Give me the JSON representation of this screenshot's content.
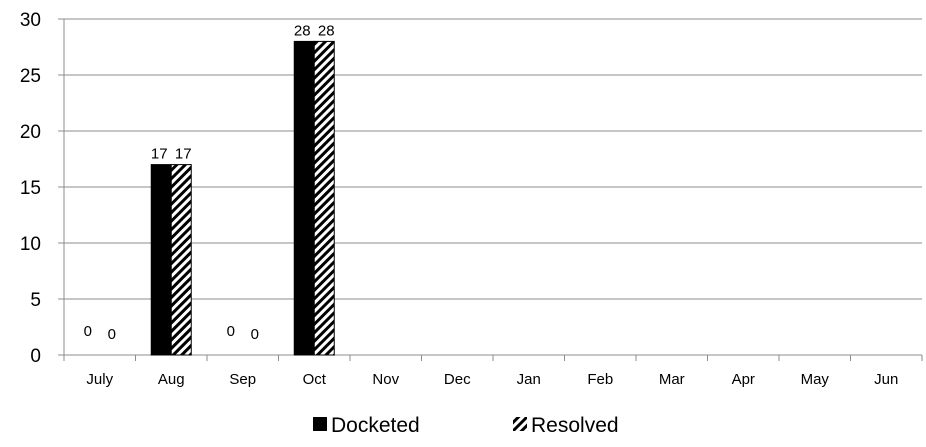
{
  "chart_data": {
    "type": "bar",
    "title": "",
    "xlabel": "",
    "ylabel": "",
    "ylim": [
      0,
      30
    ],
    "yticks": [
      0,
      5,
      10,
      15,
      20,
      25,
      30
    ],
    "grid": "horizontal",
    "legend_position": "bottom",
    "categories": [
      "July",
      "Aug",
      "Sep",
      "Oct",
      "Nov",
      "Dec",
      "Jan",
      "Feb",
      "Mar",
      "Apr",
      "May",
      "Jun"
    ],
    "series": [
      {
        "name": "Docketed",
        "pattern": "solid",
        "color": "#000000",
        "values": [
          0,
          17,
          0,
          28,
          null,
          null,
          null,
          null,
          null,
          null,
          null,
          null
        ]
      },
      {
        "name": "Resolved",
        "pattern": "diagonal-stripes",
        "color": "#000000",
        "values": [
          0,
          17,
          0,
          28,
          null,
          null,
          null,
          null,
          null,
          null,
          null,
          null
        ]
      }
    ]
  }
}
